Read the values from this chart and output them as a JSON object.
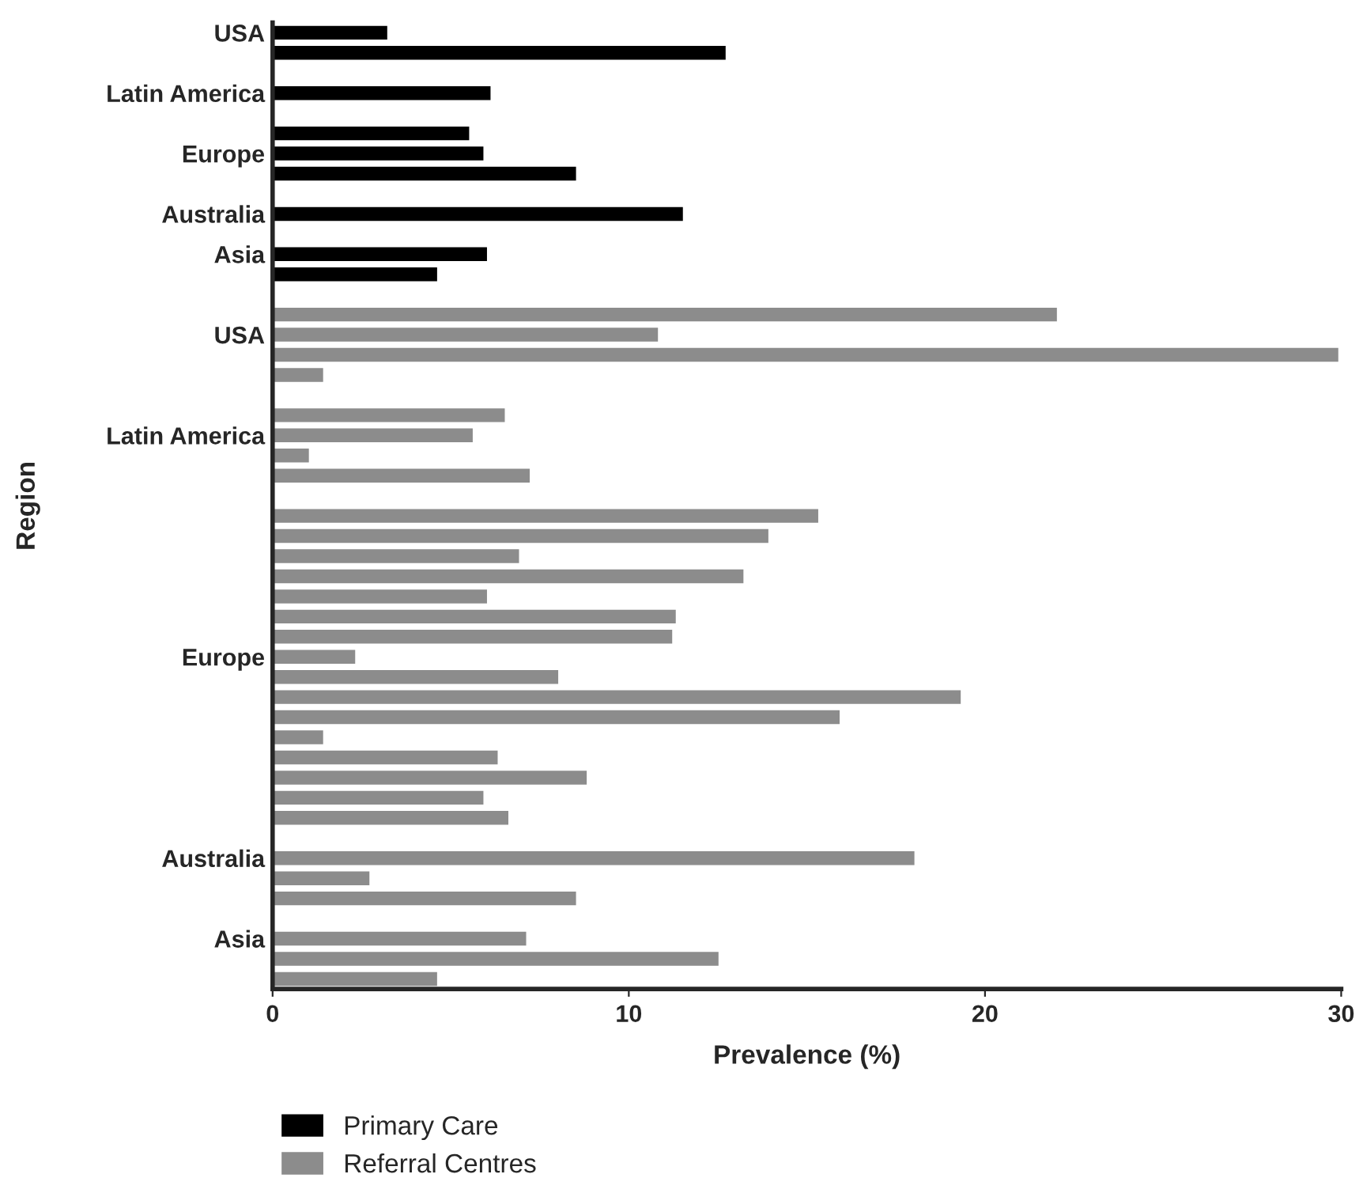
{
  "chart_data": {
    "type": "bar",
    "orientation": "horizontal",
    "xlabel": "Prevalence (%)",
    "ylabel": "Region",
    "categories": [
      "USA",
      null,
      null,
      "Latin America",
      null,
      null,
      "Europe",
      null,
      null,
      "Australia",
      null,
      "Asia",
      null,
      null,
      null,
      "USA",
      null,
      null,
      null,
      null,
      "Latin America",
      null,
      null,
      null,
      null,
      null,
      null,
      null,
      null,
      null,
      null,
      "Europe",
      null,
      null,
      null,
      null,
      null,
      null,
      null,
      null,
      null,
      "Australia",
      null,
      null,
      null,
      "Asia",
      null,
      null
    ],
    "series": [
      {
        "name": "Primary Care",
        "color": "#000000",
        "values": [
          3.2,
          12.7,
          null,
          6.1,
          null,
          5.5,
          5.9,
          8.5,
          null,
          11.5,
          null,
          6.0,
          4.6,
          null,
          null,
          null,
          null,
          null,
          null,
          null,
          null,
          null,
          null,
          null,
          null,
          null,
          null,
          null,
          null,
          null,
          null,
          null,
          null,
          null,
          null,
          null,
          null,
          null,
          null,
          null,
          null,
          null,
          null,
          null,
          null,
          null,
          null,
          null
        ]
      },
      {
        "name": "Referral Centres",
        "color": "#8c8c8c",
        "values": [
          null,
          null,
          null,
          null,
          null,
          null,
          null,
          null,
          null,
          null,
          null,
          null,
          null,
          null,
          22.0,
          10.8,
          29.9,
          1.4,
          null,
          6.5,
          5.6,
          1.0,
          7.2,
          null,
          15.3,
          13.9,
          6.9,
          13.2,
          6.0,
          11.3,
          11.2,
          2.3,
          8.0,
          19.3,
          15.9,
          1.4,
          6.3,
          8.8,
          5.9,
          6.6,
          null,
          18.0,
          2.7,
          8.5,
          null,
          7.1,
          12.5,
          4.6
        ]
      }
    ],
    "xlim": [
      0,
      30
    ],
    "xticks": [
      0,
      10,
      20,
      30
    ],
    "grid": false,
    "legend": "bottom left"
  }
}
